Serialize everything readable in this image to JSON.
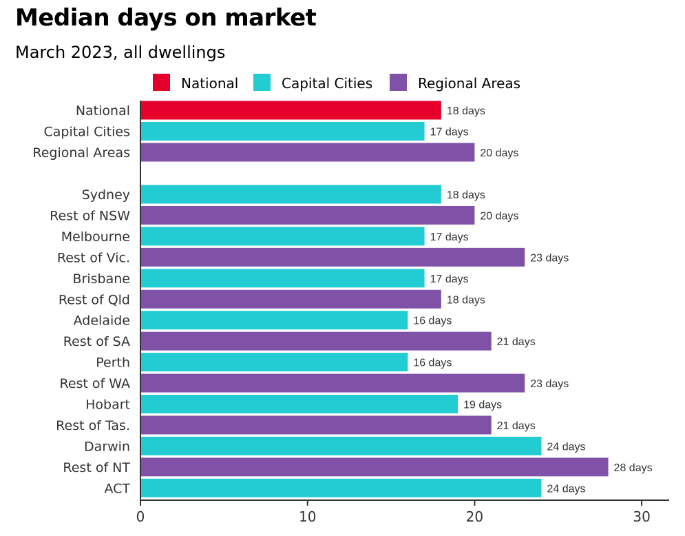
{
  "chart_data": {
    "type": "bar",
    "orientation": "horizontal",
    "title": "Median days on market",
    "subtitle": "March 2023, all dwellings",
    "legend": {
      "placement": "top",
      "entries": [
        {
          "name": "National",
          "color": "#e4002b"
        },
        {
          "name": "Capital Cities",
          "color": "#22ccd2"
        },
        {
          "name": "Regional Areas",
          "color": "#7f52a8"
        }
      ]
    },
    "categories": [
      "National",
      "Capital Cities",
      "Regional Areas",
      "Sydney",
      "Rest of NSW",
      "Melbourne",
      "Rest of Vic.",
      "Brisbane",
      "Rest of Qld",
      "Adelaide",
      "Rest of SA",
      "Perth",
      "Rest of WA",
      "Hobart",
      "Rest of Tas.",
      "Darwin",
      "Rest of NT",
      "ACT"
    ],
    "values": [
      18,
      17,
      20,
      18,
      20,
      17,
      23,
      17,
      18,
      16,
      21,
      16,
      23,
      19,
      21,
      24,
      28,
      24
    ],
    "groups": [
      "National",
      "Capital Cities",
      "Regional Areas",
      "Capital Cities",
      "Regional Areas",
      "Capital Cities",
      "Regional Areas",
      "Capital Cities",
      "Regional Areas",
      "Capital Cities",
      "Regional Areas",
      "Capital Cities",
      "Regional Areas",
      "Capital Cities",
      "Regional Areas",
      "Capital Cities",
      "Regional Areas",
      "Capital Cities"
    ],
    "data_labels": [
      "18 days",
      "17 days",
      "20 days",
      "18 days",
      "20 days",
      "17 days",
      "23 days",
      "17 days",
      "18 days",
      "16 days",
      "21 days",
      "16 days",
      "23 days",
      "19 days",
      "21 days",
      "24 days",
      "28 days",
      "24 days"
    ],
    "xlim": [
      0,
      32
    ],
    "xticks": [
      "0",
      "10",
      "20",
      "30"
    ],
    "grid": false,
    "xlabel": "",
    "ylabel": ""
  }
}
